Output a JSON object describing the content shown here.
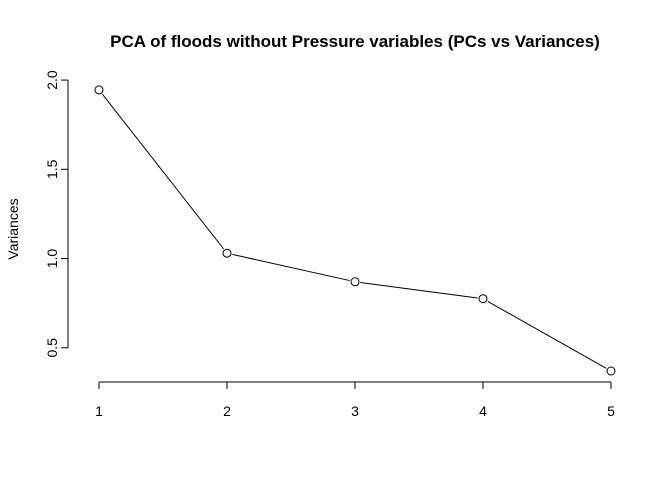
{
  "chart_data": {
    "type": "line",
    "title": "PCA of floods without Pressure variables (PCs vs Variances)",
    "xlabel": "",
    "ylabel": "Variances",
    "x": [
      1,
      2,
      3,
      4,
      5
    ],
    "x_tick_labels": [
      "1",
      "2",
      "3",
      "4",
      "5"
    ],
    "y_ticks": [
      0.5,
      1.0,
      1.5,
      2.0
    ],
    "y_tick_labels": [
      "0.5",
      "1.0",
      "1.5",
      "2.0"
    ],
    "ylim": [
      0.37,
      1.95
    ],
    "xlim": [
      1,
      5
    ],
    "series": [
      {
        "values": [
          1.945,
          1.03,
          0.87,
          0.775,
          0.37
        ],
        "color": "#000000",
        "marker": "open-circle"
      }
    ],
    "grid": false
  }
}
